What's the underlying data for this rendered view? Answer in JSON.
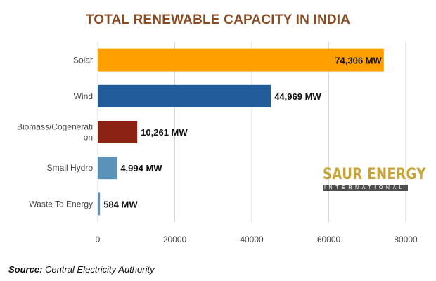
{
  "chart_data": {
    "type": "bar",
    "orientation": "horizontal",
    "title": "TOTAL RENEWABLE CAPACITY IN INDIA",
    "categories": [
      [
        "Solar"
      ],
      [
        "Wind"
      ],
      [
        "Biomass/Cogenerati",
        "on"
      ],
      [
        "Small Hydro"
      ],
      [
        "Waste To Energy"
      ]
    ],
    "values": [
      74306,
      44969,
      10261,
      4994,
      584
    ],
    "data_labels": [
      "74,306 MW",
      "44,969 MW",
      "10,261 MW",
      "4,994 MW",
      "584 MW"
    ],
    "colors": [
      "#ffa000",
      "#1f5c99",
      "#8b2211",
      "#5a93ba",
      "#5a93ba"
    ],
    "label_colors": [
      "#111111",
      "#111111",
      "#111111",
      "#111111",
      "#111111"
    ],
    "xlim": [
      0,
      80000
    ],
    "xticks": [
      0,
      20000,
      40000,
      60000,
      80000
    ],
    "grid": true,
    "xlabel": "",
    "ylabel": ""
  },
  "logo": {
    "main": "SAUR ENERGY",
    "sub": "INTERNATIONAL"
  },
  "source": {
    "label": "Source:",
    "text": " Central Electricity Authority"
  }
}
